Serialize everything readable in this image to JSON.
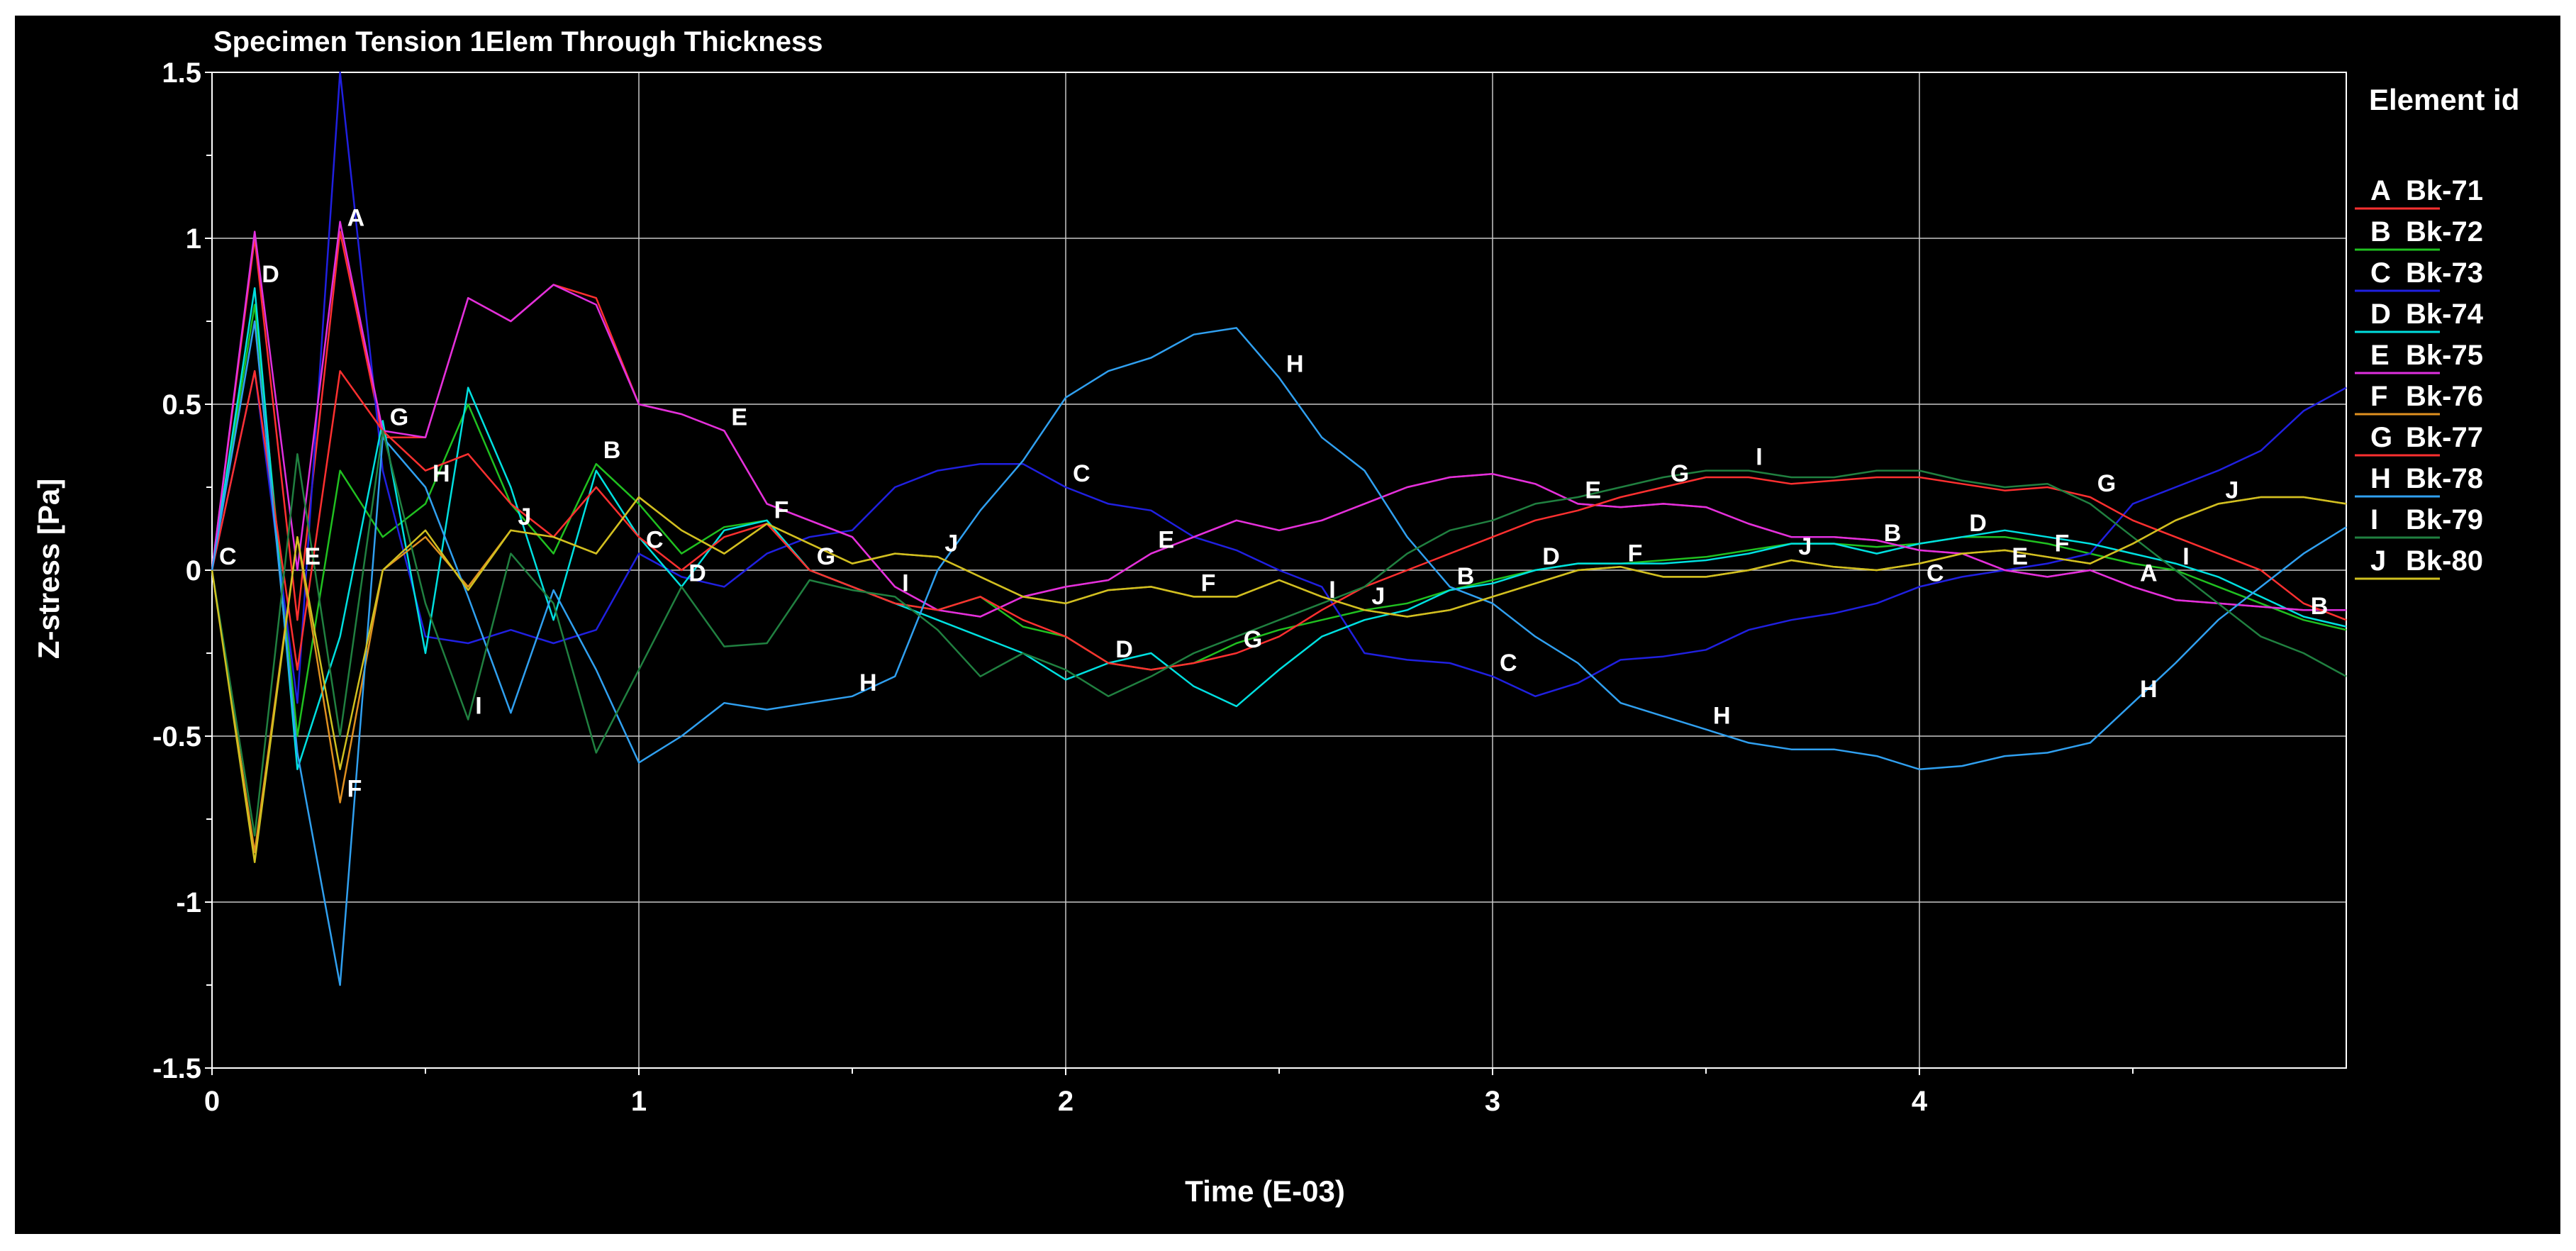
{
  "chart_data": {
    "type": "line",
    "title": "Specimen Tension 1Elem Through Thickness",
    "xlabel": "Time (E-03)",
    "ylabel": "Z-stress [Pa]",
    "xlim": [
      0,
      5
    ],
    "ylim": [
      -1.5,
      1.5
    ],
    "x_ticks": [
      0,
      1,
      2,
      3,
      4
    ],
    "x_tick_labels": [
      "0",
      "1",
      "2",
      "3",
      "4"
    ],
    "y_ticks": [
      -1.5,
      -1,
      -0.5,
      0,
      0.5,
      1,
      1.5
    ],
    "y_tick_labels": [
      "-1.5",
      "-1",
      "-0.5",
      "0",
      "0.5",
      "1",
      "1.5"
    ],
    "grid": true,
    "legend": {
      "title": "Element id",
      "placement": "right"
    },
    "x": [
      0,
      0.1,
      0.2,
      0.3,
      0.4,
      0.5,
      0.6,
      0.7,
      0.8,
      0.9,
      1.0,
      1.1,
      1.2,
      1.3,
      1.4,
      1.5,
      1.6,
      1.7,
      1.8,
      1.9,
      2.0,
      2.1,
      2.2,
      2.3,
      2.4,
      2.5,
      2.6,
      2.7,
      2.8,
      2.9,
      3.0,
      3.1,
      3.2,
      3.3,
      3.4,
      3.5,
      3.6,
      3.7,
      3.8,
      3.9,
      4.0,
      4.1,
      4.2,
      4.3,
      4.4,
      4.5,
      4.6,
      4.7,
      4.8,
      4.9,
      5.0
    ],
    "series": [
      {
        "letter": "A",
        "name": "Bk-71",
        "color": "#ff3030",
        "label_at": [
          3,
          45
        ],
        "values": [
          0,
          1.0,
          -0.15,
          1.02,
          0.4,
          0.4,
          0.82,
          0.75,
          0.86,
          0.82,
          0.5,
          0.47,
          0.42,
          0.2,
          0.15,
          0.1,
          -0.05,
          -0.12,
          -0.14,
          -0.08,
          -0.05,
          -0.03,
          0.05,
          0.1,
          0.15,
          0.12,
          0.15,
          0.2,
          0.25,
          0.28,
          0.29,
          0.26,
          0.2,
          0.19,
          0.2,
          0.19,
          0.14,
          0.1,
          0.1,
          0.09,
          0.06,
          0.05,
          0.0,
          -0.02,
          0.0,
          -0.05,
          -0.09,
          -0.1,
          -0.11,
          -0.12,
          -0.12
        ]
      },
      {
        "letter": "B",
        "name": "Bk-72",
        "color": "#20c020",
        "label_at": [
          9,
          29,
          39,
          49
        ],
        "values": [
          0,
          0.8,
          -0.5,
          0.3,
          0.1,
          0.2,
          0.5,
          0.2,
          0.05,
          0.32,
          0.2,
          0.05,
          0.13,
          0.15,
          0.0,
          -0.05,
          -0.1,
          -0.12,
          -0.08,
          -0.17,
          -0.2,
          -0.28,
          -0.3,
          -0.28,
          -0.22,
          -0.18,
          -0.15,
          -0.12,
          -0.1,
          -0.06,
          -0.03,
          0.0,
          0.02,
          0.02,
          0.03,
          0.04,
          0.06,
          0.08,
          0.08,
          0.07,
          0.08,
          0.1,
          0.1,
          0.08,
          0.05,
          0.02,
          0.0,
          -0.05,
          -0.1,
          -0.15,
          -0.18
        ]
      },
      {
        "letter": "C",
        "name": "Bk-73",
        "color": "#2020e0",
        "label_at": [
          0,
          10,
          20,
          30,
          40
        ],
        "values": [
          0,
          0.6,
          -0.4,
          1.5,
          0.3,
          -0.2,
          -0.22,
          -0.18,
          -0.22,
          -0.18,
          0.05,
          -0.02,
          -0.05,
          0.05,
          0.1,
          0.12,
          0.25,
          0.3,
          0.32,
          0.32,
          0.25,
          0.2,
          0.18,
          0.1,
          0.06,
          0.0,
          -0.05,
          -0.25,
          -0.27,
          -0.28,
          -0.32,
          -0.38,
          -0.34,
          -0.27,
          -0.26,
          -0.24,
          -0.18,
          -0.15,
          -0.13,
          -0.1,
          -0.05,
          -0.02,
          0.0,
          0.02,
          0.05,
          0.2,
          0.25,
          0.3,
          0.36,
          0.48,
          0.55
        ]
      },
      {
        "letter": "D",
        "name": "Bk-74",
        "color": "#00e0e0",
        "label_at": [
          1,
          11,
          21,
          31,
          41
        ],
        "values": [
          0,
          0.85,
          -0.6,
          -0.2,
          0.45,
          -0.25,
          0.55,
          0.25,
          -0.15,
          0.3,
          0.1,
          -0.05,
          0.12,
          0.15,
          0.0,
          -0.05,
          -0.1,
          -0.15,
          -0.2,
          -0.25,
          -0.33,
          -0.28,
          -0.25,
          -0.35,
          -0.41,
          -0.3,
          -0.2,
          -0.15,
          -0.12,
          -0.06,
          -0.04,
          0.0,
          0.02,
          0.02,
          0.02,
          0.03,
          0.05,
          0.08,
          0.08,
          0.05,
          0.08,
          0.1,
          0.12,
          0.1,
          0.08,
          0.05,
          0.02,
          -0.02,
          -0.08,
          -0.14,
          -0.17
        ]
      },
      {
        "letter": "E",
        "name": "Bk-75",
        "color": "#e030e0",
        "label_at": [
          2,
          12,
          22,
          32,
          42
        ],
        "values": [
          0,
          1.02,
          0.0,
          1.05,
          0.42,
          0.4,
          0.82,
          0.75,
          0.86,
          0.8,
          0.5,
          0.47,
          0.42,
          0.2,
          0.15,
          0.1,
          -0.05,
          -0.12,
          -0.14,
          -0.08,
          -0.05,
          -0.03,
          0.05,
          0.1,
          0.15,
          0.12,
          0.15,
          0.2,
          0.25,
          0.28,
          0.29,
          0.26,
          0.2,
          0.19,
          0.2,
          0.19,
          0.14,
          0.1,
          0.1,
          0.09,
          0.06,
          0.05,
          0.0,
          -0.02,
          0.0,
          -0.05,
          -0.09,
          -0.1,
          -0.11,
          -0.12,
          -0.12
        ]
      },
      {
        "letter": "F",
        "name": "Bk-76",
        "color": "#e09020",
        "label_at": [
          3,
          13,
          23,
          33,
          43
        ],
        "values": [
          0,
          -0.85,
          0.1,
          -0.7,
          0.0,
          0.1,
          -0.05,
          0.12,
          0.1,
          0.05,
          0.22,
          0.12,
          0.05,
          0.14,
          0.08,
          0.02,
          0.05,
          0.04,
          -0.02,
          -0.08,
          -0.1,
          -0.06,
          -0.05,
          -0.08,
          -0.08,
          -0.03,
          -0.08,
          -0.12,
          -0.14,
          -0.12,
          -0.08,
          -0.04,
          0.0,
          0.01,
          -0.02,
          -0.02,
          0.0,
          0.03,
          0.01,
          0.0,
          0.02,
          0.05,
          0.06,
          0.04,
          0.02,
          0.08,
          0.15,
          0.2,
          0.22,
          0.22,
          0.2
        ]
      },
      {
        "letter": "G",
        "name": "Bk-77",
        "color": "#ff3030",
        "label_at": [
          4,
          14,
          24,
          34,
          44
        ],
        "values": [
          0,
          0.6,
          -0.3,
          0.6,
          0.42,
          0.3,
          0.35,
          0.2,
          0.1,
          0.25,
          0.1,
          0.0,
          0.1,
          0.14,
          0.0,
          -0.05,
          -0.1,
          -0.12,
          -0.08,
          -0.15,
          -0.2,
          -0.28,
          -0.3,
          -0.28,
          -0.25,
          -0.2,
          -0.12,
          -0.05,
          0.0,
          0.05,
          0.1,
          0.15,
          0.18,
          0.22,
          0.25,
          0.28,
          0.28,
          0.26,
          0.27,
          0.28,
          0.28,
          0.26,
          0.24,
          0.25,
          0.22,
          0.15,
          0.1,
          0.05,
          0.0,
          -0.1,
          -0.15
        ]
      },
      {
        "letter": "H",
        "name": "Bk-78",
        "color": "#30a0f0",
        "label_at": [
          5,
          15,
          25,
          35,
          45
        ],
        "values": [
          0,
          0.75,
          -0.55,
          -1.25,
          0.4,
          0.25,
          -0.08,
          -0.43,
          -0.06,
          -0.3,
          -0.58,
          -0.5,
          -0.4,
          -0.42,
          -0.4,
          -0.38,
          -0.32,
          0.0,
          0.18,
          0.33,
          0.52,
          0.6,
          0.64,
          0.71,
          0.73,
          0.58,
          0.4,
          0.3,
          0.1,
          -0.05,
          -0.1,
          -0.2,
          -0.28,
          -0.4,
          -0.44,
          -0.48,
          -0.52,
          -0.54,
          -0.54,
          -0.56,
          -0.6,
          -0.59,
          -0.56,
          -0.55,
          -0.52,
          -0.4,
          -0.28,
          -0.15,
          -0.05,
          0.05,
          0.13
        ]
      },
      {
        "letter": "I",
        "name": "Bk-79",
        "color": "#208040",
        "label_at": [
          6,
          16,
          26,
          36,
          46
        ],
        "values": [
          0,
          -0.8,
          0.35,
          -0.5,
          0.42,
          -0.1,
          -0.45,
          0.05,
          -0.1,
          -0.55,
          -0.3,
          -0.05,
          -0.23,
          -0.22,
          -0.03,
          -0.06,
          -0.08,
          -0.18,
          -0.32,
          -0.25,
          -0.3,
          -0.38,
          -0.32,
          -0.25,
          -0.2,
          -0.15,
          -0.1,
          -0.05,
          0.05,
          0.12,
          0.15,
          0.2,
          0.22,
          0.25,
          0.28,
          0.3,
          0.3,
          0.28,
          0.28,
          0.3,
          0.3,
          0.27,
          0.25,
          0.26,
          0.2,
          0.1,
          0.0,
          -0.1,
          -0.2,
          -0.25,
          -0.32
        ]
      },
      {
        "letter": "J",
        "name": "Bk-80",
        "color": "#d0c020",
        "label_at": [
          7,
          17,
          27,
          37,
          47
        ],
        "values": [
          0,
          -0.88,
          0.1,
          -0.6,
          0.0,
          0.12,
          -0.06,
          0.12,
          0.1,
          0.05,
          0.22,
          0.12,
          0.05,
          0.14,
          0.08,
          0.02,
          0.05,
          0.04,
          -0.02,
          -0.08,
          -0.1,
          -0.06,
          -0.05,
          -0.08,
          -0.08,
          -0.03,
          -0.08,
          -0.12,
          -0.14,
          -0.12,
          -0.08,
          -0.04,
          0.0,
          0.01,
          -0.02,
          -0.02,
          0.0,
          0.03,
          0.01,
          0.0,
          0.02,
          0.05,
          0.06,
          0.04,
          0.02,
          0.08,
          0.15,
          0.2,
          0.22,
          0.22,
          0.2
        ]
      }
    ]
  }
}
